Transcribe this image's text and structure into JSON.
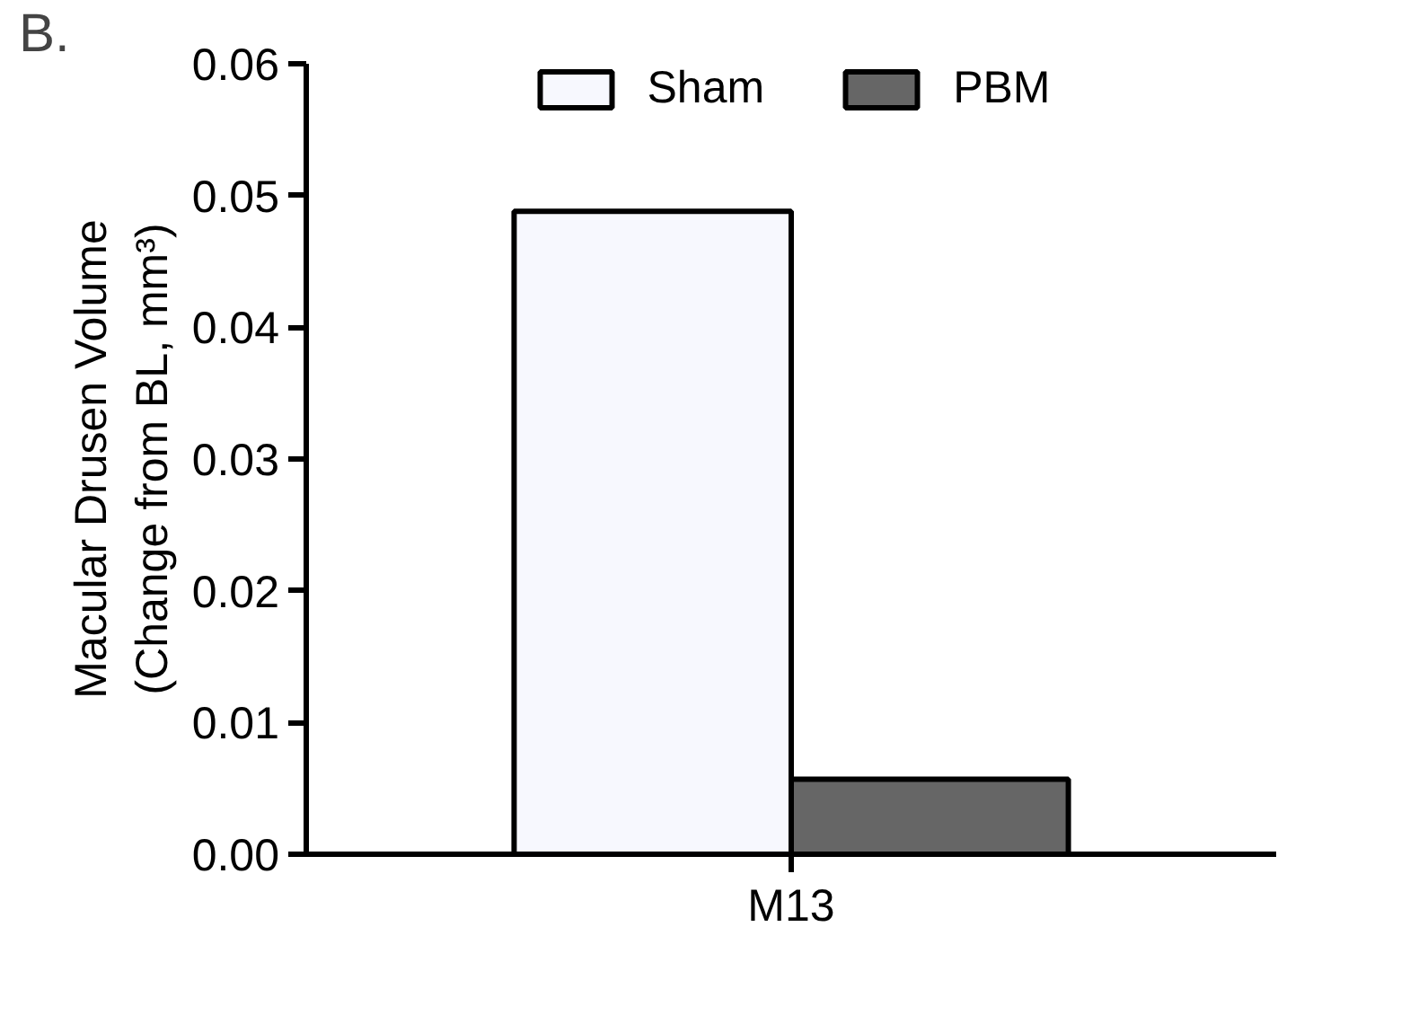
{
  "chart_data": {
    "type": "bar",
    "categories": [
      "M13"
    ],
    "series": [
      {
        "name": "Sham",
        "color": "#f7f8fe",
        "values": [
          0.0488
        ]
      },
      {
        "name": "PBM",
        "color": "#666666",
        "values": [
          0.0057
        ]
      }
    ],
    "ylabel": "Macular Drusen Volume\n(Change from BL, mm³)",
    "ylim": [
      0,
      0.06
    ],
    "yticks": [
      {
        "value": 0,
        "label": "0.00"
      },
      {
        "value": 0.01,
        "label": "0.01"
      },
      {
        "value": 0.02,
        "label": "0.02"
      },
      {
        "value": 0.03,
        "label": "0.03"
      },
      {
        "value": 0.04,
        "label": "0.04"
      },
      {
        "value": 0.05,
        "label": "0.05"
      },
      {
        "value": 0.06,
        "label": "0.06"
      }
    ],
    "annotations": [
      "B."
    ],
    "legend": "top",
    "grid": false
  }
}
